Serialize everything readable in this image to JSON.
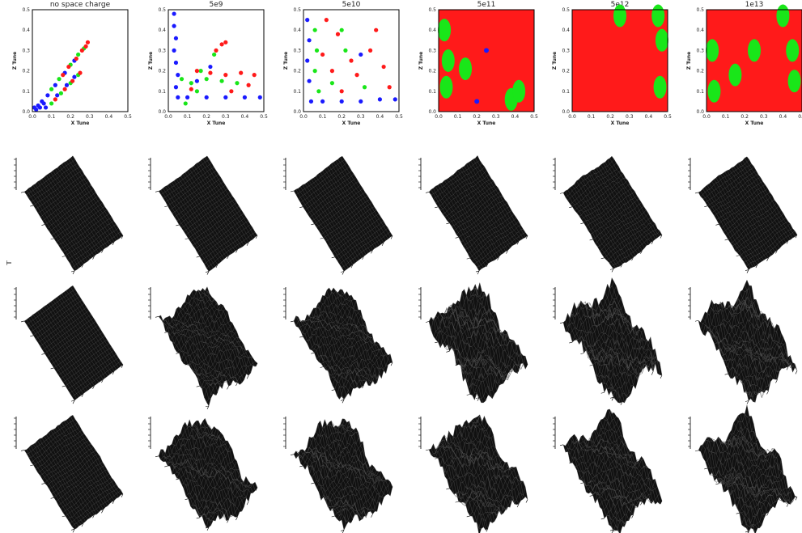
{
  "colors": {
    "red": "#ff1a1a",
    "green": "#19e619",
    "blue": "#1a1aff",
    "black": "#000000"
  },
  "tune_panels": [
    {
      "title": "no space charge"
    },
    {
      "title": "5e9"
    },
    {
      "title": "5e10"
    },
    {
      "title": "5e11"
    },
    {
      "title": "5e12"
    },
    {
      "title": "1e13"
    }
  ],
  "chart_data": [
    {
      "type": "scatter",
      "title": "no space charge",
      "xlabel": "X Tune",
      "ylabel": "Z Tune",
      "xlim": [
        0.0,
        0.5
      ],
      "ylim": [
        0.0,
        0.5
      ],
      "xticks": [
        "0.0",
        "0.1",
        "0.2",
        "0.3",
        "0.4",
        "0.5"
      ],
      "yticks": [
        "0.0",
        "0.1",
        "0.2",
        "0.3",
        "0.4",
        "0.5"
      ],
      "series": [
        {
          "color": "blue",
          "points": [
            [
              0.01,
              0.02
            ],
            [
              0.02,
              0.01
            ],
            [
              0.03,
              0.03
            ],
            [
              0.04,
              0.02
            ],
            [
              0.05,
              0.05
            ],
            [
              0.06,
              0.04
            ],
            [
              0.08,
              0.08
            ],
            [
              0.12,
              0.13
            ],
            [
              0.17,
              0.19
            ],
            [
              0.22,
              0.25
            ],
            [
              0.07,
              0.02
            ],
            [
              0.13,
              0.08
            ],
            [
              0.18,
              0.13
            ],
            [
              0.22,
              0.17
            ]
          ]
        },
        {
          "color": "green",
          "points": [
            [
              0.1,
              0.11
            ],
            [
              0.14,
              0.16
            ],
            [
              0.2,
              0.23
            ],
            [
              0.24,
              0.28
            ],
            [
              0.27,
              0.31
            ],
            [
              0.1,
              0.04
            ],
            [
              0.15,
              0.09
            ],
            [
              0.2,
              0.14
            ],
            [
              0.24,
              0.18
            ]
          ]
        },
        {
          "color": "red",
          "points": [
            [
              0.16,
              0.18
            ],
            [
              0.19,
              0.22
            ],
            [
              0.23,
              0.26
            ],
            [
              0.26,
              0.3
            ],
            [
              0.28,
              0.32
            ],
            [
              0.29,
              0.34
            ],
            [
              0.12,
              0.06
            ],
            [
              0.17,
              0.11
            ],
            [
              0.21,
              0.15
            ],
            [
              0.25,
              0.19
            ]
          ]
        }
      ]
    },
    {
      "type": "scatter",
      "title": "5e9",
      "xlabel": "X Tune",
      "ylabel": "Z Tune",
      "xlim": [
        0.0,
        0.5
      ],
      "ylim": [
        0.0,
        0.5
      ],
      "xticks": [
        "0.0",
        "0.1",
        "0.2",
        "0.3",
        "0.4",
        "0.5"
      ],
      "yticks": [
        "0.0",
        "0.1",
        "0.2",
        "0.3",
        "0.4",
        "0.5"
      ],
      "series": [
        {
          "color": "blue",
          "points": [
            [
              0.03,
              0.48
            ],
            [
              0.03,
              0.42
            ],
            [
              0.04,
              0.36
            ],
            [
              0.03,
              0.3
            ],
            [
              0.04,
              0.24
            ],
            [
              0.05,
              0.18
            ],
            [
              0.04,
              0.12
            ],
            [
              0.05,
              0.07
            ],
            [
              0.1,
              0.07
            ],
            [
              0.2,
              0.07
            ],
            [
              0.3,
              0.07
            ],
            [
              0.4,
              0.07
            ],
            [
              0.48,
              0.07
            ],
            [
              0.15,
              0.15
            ],
            [
              0.22,
              0.22
            ]
          ]
        },
        {
          "color": "green",
          "points": [
            [
              0.07,
              0.16
            ],
            [
              0.12,
              0.14
            ],
            [
              0.2,
              0.16
            ],
            [
              0.28,
              0.15
            ],
            [
              0.36,
              0.14
            ],
            [
              0.17,
              0.2
            ],
            [
              0.24,
              0.28
            ],
            [
              0.09,
              0.04
            ],
            [
              0.15,
              0.1
            ]
          ]
        },
        {
          "color": "red",
          "points": [
            [
              0.15,
              0.2
            ],
            [
              0.22,
              0.19
            ],
            [
              0.3,
              0.18
            ],
            [
              0.38,
              0.19
            ],
            [
              0.45,
              0.18
            ],
            [
              0.25,
              0.3
            ],
            [
              0.28,
              0.33
            ],
            [
              0.3,
              0.34
            ],
            [
              0.12,
              0.11
            ],
            [
              0.33,
              0.1
            ],
            [
              0.42,
              0.13
            ]
          ]
        }
      ]
    },
    {
      "type": "scatter",
      "title": "5e10",
      "xlabel": "X Tune",
      "ylabel": "Z Tune",
      "xlim": [
        0.0,
        0.5
      ],
      "ylim": [
        0.0,
        0.5
      ],
      "xticks": [
        "0.0",
        "0.1",
        "0.2",
        "0.3",
        "0.4",
        "0.5"
      ],
      "yticks": [
        "0.0",
        "0.1",
        "0.2",
        "0.3",
        "0.4",
        "0.5"
      ],
      "series": [
        {
          "color": "blue",
          "points": [
            [
              0.02,
              0.45
            ],
            [
              0.03,
              0.35
            ],
            [
              0.02,
              0.25
            ],
            [
              0.03,
              0.15
            ],
            [
              0.04,
              0.05
            ],
            [
              0.1,
              0.05
            ],
            [
              0.2,
              0.05
            ],
            [
              0.3,
              0.05
            ],
            [
              0.4,
              0.06
            ],
            [
              0.48,
              0.06
            ],
            [
              0.3,
              0.28
            ]
          ]
        },
        {
          "color": "green",
          "points": [
            [
              0.06,
              0.4
            ],
            [
              0.07,
              0.3
            ],
            [
              0.06,
              0.2
            ],
            [
              0.08,
              0.1
            ],
            [
              0.2,
              0.4
            ],
            [
              0.22,
              0.3
            ],
            [
              0.15,
              0.14
            ],
            [
              0.32,
              0.12
            ]
          ]
        },
        {
          "color": "red",
          "points": [
            [
              0.12,
              0.45
            ],
            [
              0.18,
              0.38
            ],
            [
              0.1,
              0.28
            ],
            [
              0.25,
              0.25
            ],
            [
              0.35,
              0.3
            ],
            [
              0.42,
              0.22
            ],
            [
              0.45,
              0.12
            ],
            [
              0.2,
              0.1
            ],
            [
              0.28,
              0.18
            ],
            [
              0.38,
              0.4
            ],
            [
              0.15,
              0.2
            ]
          ]
        }
      ]
    },
    {
      "type": "scatter",
      "title": "5e11",
      "xlabel": "X Tune",
      "ylabel": "Z Tune",
      "xlim": [
        0.0,
        0.5
      ],
      "ylim": [
        0.0,
        0.5
      ],
      "xticks": [
        "0.0",
        "0.1",
        "0.2",
        "0.3",
        "0.4",
        "0.5"
      ],
      "yticks": [
        "0.0",
        "0.1",
        "0.2",
        "0.3",
        "0.4",
        "0.5"
      ],
      "series": [
        {
          "color": "green",
          "points": [
            [
              0.03,
              0.4
            ],
            [
              0.05,
              0.25
            ],
            [
              0.04,
              0.12
            ],
            [
              0.14,
              0.21
            ],
            [
              0.38,
              0.06
            ],
            [
              0.42,
              0.1
            ]
          ]
        },
        {
          "color": "blue",
          "points": [
            [
              0.25,
              0.3
            ],
            [
              0.2,
              0.05
            ]
          ]
        }
      ]
    },
    {
      "type": "scatter",
      "title": "5e12",
      "xlabel": "X Tune",
      "ylabel": "Z Tune",
      "xlim": [
        0.0,
        0.5
      ],
      "ylim": [
        0.0,
        0.5
      ],
      "xticks": [
        "0.0",
        "0.1",
        "0.2",
        "0.3",
        "0.4",
        "0.5"
      ],
      "yticks": [
        "0.0",
        "0.1",
        "0.2",
        "0.3",
        "0.4",
        "0.5"
      ],
      "series": [
        {
          "color": "green",
          "points": [
            [
              0.47,
              0.35
            ],
            [
              0.46,
              0.12
            ],
            [
              0.25,
              0.47
            ],
            [
              0.45,
              0.47
            ]
          ]
        }
      ]
    },
    {
      "type": "scatter",
      "title": "1e13",
      "xlabel": "X Tune",
      "ylabel": "Z Tune",
      "xlim": [
        0.0,
        0.5
      ],
      "ylim": [
        0.0,
        0.5
      ],
      "xticks": [
        "0.0",
        "0.1",
        "0.2",
        "0.3",
        "0.4",
        "0.5"
      ],
      "yticks": [
        "0.0",
        "0.1",
        "0.2",
        "0.3",
        "0.4",
        "0.5"
      ],
      "series": [
        {
          "color": "green",
          "points": [
            [
              0.03,
              0.3
            ],
            [
              0.04,
              0.1
            ],
            [
              0.25,
              0.3
            ],
            [
              0.45,
              0.3
            ],
            [
              0.46,
              0.15
            ],
            [
              0.4,
              0.47
            ],
            [
              0.15,
              0.18
            ]
          ]
        }
      ]
    }
  ],
  "surface_rows": [
    {
      "roughness": [
        0.05,
        0.05,
        0.05,
        0.1,
        0.12,
        0.1
      ]
    },
    {
      "roughness": [
        0.02,
        0.45,
        0.5,
        0.75,
        0.7,
        0.7
      ]
    },
    {
      "roughness": [
        0.1,
        0.55,
        0.6,
        0.65,
        0.6,
        0.7
      ]
    }
  ]
}
